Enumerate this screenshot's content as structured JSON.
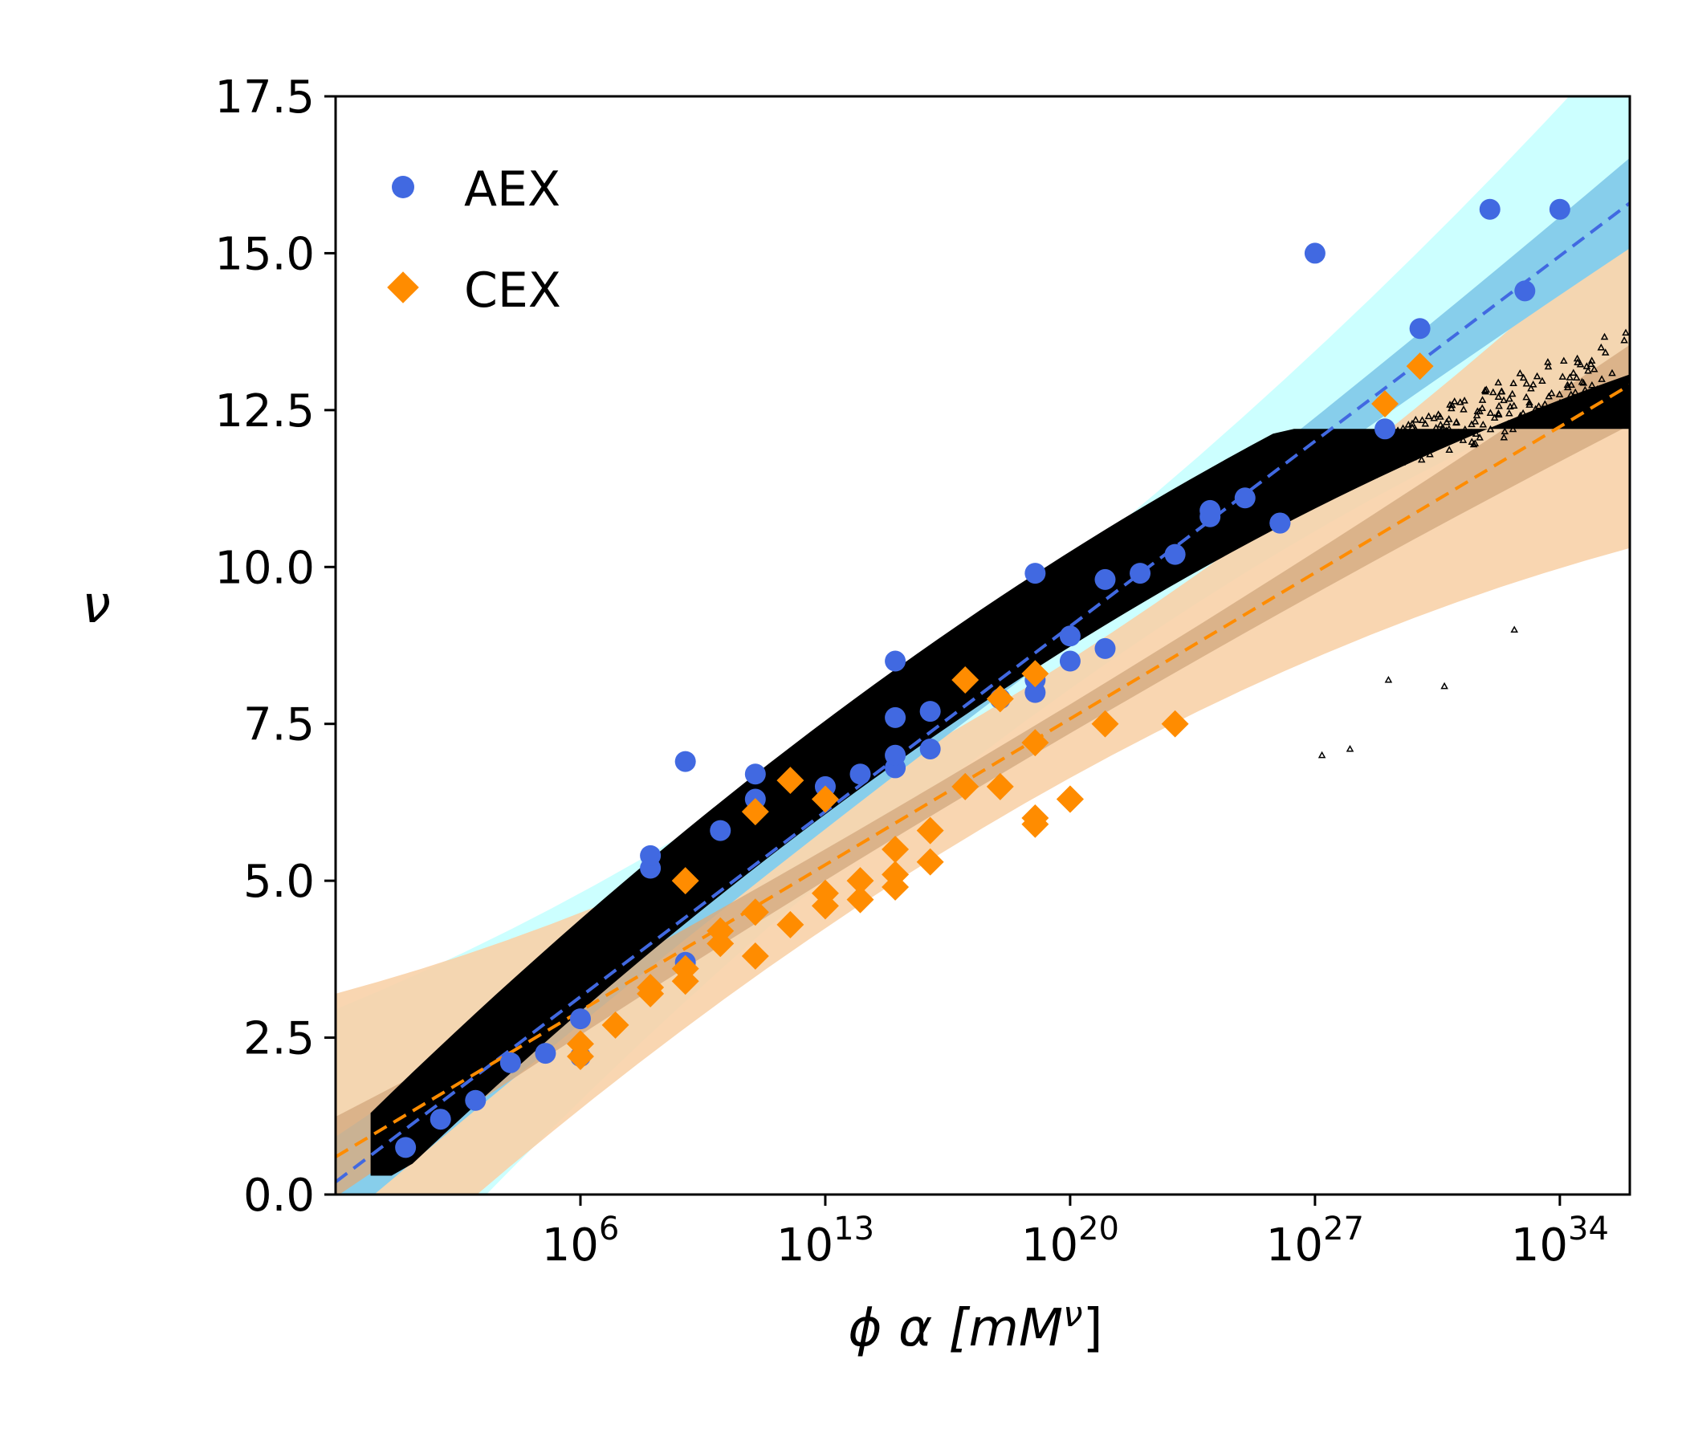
{
  "chart_data": {
    "type": "scatter",
    "title": "",
    "xlabel": "ϕ α  [mM",
    "xlabel_sup": "ν",
    "xlabel_end": "]",
    "ylabel": "ν",
    "x_scale": "log",
    "xlim": [
      0.1,
      1e+36
    ],
    "ylim": [
      0.0,
      17.5
    ],
    "x_ticks": [
      {
        "value": 1000000.0,
        "base": "10",
        "exp": "6"
      },
      {
        "value": 10000000000000.0,
        "base": "10",
        "exp": "13"
      },
      {
        "value": 1e+20,
        "base": "10",
        "exp": "20"
      },
      {
        "value": 1e+27,
        "base": "10",
        "exp": "27"
      },
      {
        "value": 1e+34,
        "base": "10",
        "exp": "34"
      }
    ],
    "y_ticks": [
      "0.0",
      "2.5",
      "5.0",
      "7.5",
      "10.0",
      "12.5",
      "15.0",
      "17.5"
    ],
    "grid": false,
    "legend_position": "top-left",
    "colors": {
      "aex": "#4169e1",
      "cex": "#ff8c00",
      "aex_band_outer": "#ccffff",
      "aex_band_inner": "#87ceeb",
      "cex_band_outer": "#f8d2a8",
      "cex_band_inner": "#d6ad84",
      "model": "#000000"
    },
    "series": [
      {
        "name": "AEX",
        "marker": "circle",
        "points": [
          [
            10.0,
            0.75
          ],
          [
            100.0,
            1.2
          ],
          [
            1000.0,
            1.5
          ],
          [
            10000.0,
            2.1
          ],
          [
            100000.0,
            2.25
          ],
          [
            1000000.0,
            2.2
          ],
          [
            1000000.0,
            2.8
          ],
          [
            100000000.0,
            5.2
          ],
          [
            100000000.0,
            5.4
          ],
          [
            1000000000.0,
            6.9
          ],
          [
            1000000000.0,
            3.7
          ],
          [
            10000000000.0,
            5.8
          ],
          [
            100000000000.0,
            6.3
          ],
          [
            100000000000.0,
            6.7
          ],
          [
            10000000000000.0,
            6.5
          ],
          [
            100000000000000.0,
            6.7
          ],
          [
            1000000000000000.0,
            6.8
          ],
          [
            1000000000000000.0,
            7.0
          ],
          [
            1000000000000000.0,
            8.5
          ],
          [
            1000000000000000.0,
            7.6
          ],
          [
            1e+16,
            7.7
          ],
          [
            1e+16,
            7.1
          ],
          [
            1e+18,
            7.9
          ],
          [
            1e+19,
            9.9
          ],
          [
            1e+19,
            8.2
          ],
          [
            1e+19,
            8.0
          ],
          [
            1e+20,
            8.5
          ],
          [
            1e+20,
            8.9
          ],
          [
            1e+21,
            9.8
          ],
          [
            1e+21,
            8.7
          ],
          [
            1e+22,
            9.9
          ],
          [
            1e+23,
            10.2
          ],
          [
            1e+24,
            10.8
          ],
          [
            1e+24,
            10.9
          ],
          [
            1e+25,
            11.1
          ],
          [
            1e+26,
            10.7
          ],
          [
            1e+26,
            10.7
          ],
          [
            1e+27,
            15.0
          ],
          [
            1e+29,
            12.2
          ],
          [
            1e+30,
            13.8
          ],
          [
            1e+32,
            15.7
          ],
          [
            1e+33,
            14.4
          ],
          [
            1e+34,
            15.7
          ]
        ]
      },
      {
        "name": "CEX",
        "marker": "diamond",
        "points": [
          [
            1000000.0,
            2.2
          ],
          [
            1000000.0,
            2.4
          ],
          [
            10000000.0,
            2.7
          ],
          [
            100000000.0,
            3.2
          ],
          [
            100000000.0,
            3.3
          ],
          [
            1000000000.0,
            3.4
          ],
          [
            1000000000.0,
            3.6
          ],
          [
            1000000000.0,
            5.0
          ],
          [
            10000000000.0,
            4.0
          ],
          [
            10000000000.0,
            4.2
          ],
          [
            100000000000.0,
            3.8
          ],
          [
            100000000000.0,
            4.5
          ],
          [
            100000000000.0,
            6.1
          ],
          [
            1000000000000.0,
            4.3
          ],
          [
            1000000000000.0,
            6.6
          ],
          [
            10000000000000.0,
            6.3
          ],
          [
            10000000000000.0,
            4.6
          ],
          [
            10000000000000.0,
            4.8
          ],
          [
            100000000000000.0,
            4.7
          ],
          [
            100000000000000.0,
            5.0
          ],
          [
            1000000000000000.0,
            5.1
          ],
          [
            1000000000000000.0,
            4.9
          ],
          [
            1000000000000000.0,
            5.5
          ],
          [
            1e+16,
            5.3
          ],
          [
            1e+16,
            5.8
          ],
          [
            1e+17,
            6.5
          ],
          [
            1e+17,
            8.2
          ],
          [
            1e+18,
            6.5
          ],
          [
            1e+18,
            7.9
          ],
          [
            1e+19,
            6.0
          ],
          [
            1e+19,
            5.9
          ],
          [
            1e+19,
            8.3
          ],
          [
            1e+19,
            7.2
          ],
          [
            1e+20,
            6.3
          ],
          [
            1e+20,
            6.3
          ],
          [
            1e+21,
            7.5
          ],
          [
            1e+23,
            7.5
          ],
          [
            1e+29,
            12.6
          ],
          [
            1e+30,
            13.2
          ]
        ]
      }
    ],
    "fits": [
      {
        "series": "AEX",
        "x_range": [
          0.1,
          1e+36
        ],
        "y": [
          0.2,
          15.8
        ],
        "band_inner": 0.45,
        "band_outer": 1.25
      },
      {
        "series": "CEX",
        "x_range": [
          0.1,
          1e+36
        ],
        "y": [
          0.6,
          12.9
        ],
        "band_inner": 0.4,
        "band_outer": 1.3
      }
    ],
    "model_cloud": {
      "marker": "triangle",
      "color": "#000000"
    }
  }
}
